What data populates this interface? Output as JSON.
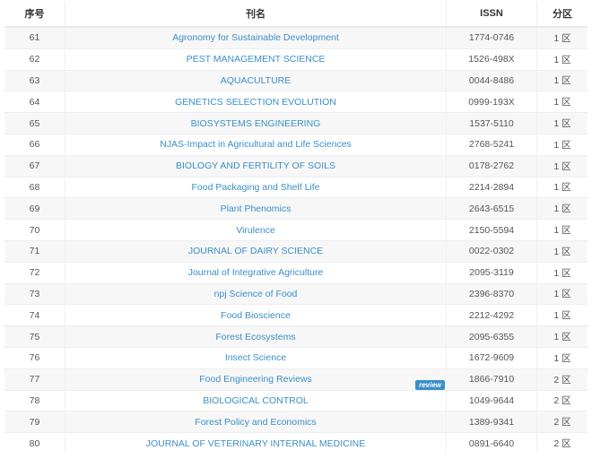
{
  "headers": {
    "index": "序号",
    "name": "刊名",
    "issn": "ISSN",
    "zone": "分区"
  },
  "link_color": "#3a8fc8",
  "rows": [
    {
      "index": "61",
      "name": "Agronomy for Sustainable Development",
      "issn": "1774-0746",
      "zone": "1 区"
    },
    {
      "index": "62",
      "name": "PEST MANAGEMENT SCIENCE",
      "issn": "1526-498X",
      "zone": "1 区"
    },
    {
      "index": "63",
      "name": "AQUACULTURE",
      "issn": "0044-8486",
      "zone": "1 区"
    },
    {
      "index": "64",
      "name": "GENETICS SELECTION EVOLUTION",
      "issn": "0999-193X",
      "zone": "1 区"
    },
    {
      "index": "65",
      "name": "BIOSYSTEMS ENGINEERING",
      "issn": "1537-5110",
      "zone": "1 区"
    },
    {
      "index": "66",
      "name": "NJAS-Impact in Agricultural and Life Sciences",
      "issn": "2768-5241",
      "zone": "1 区"
    },
    {
      "index": "67",
      "name": "BIOLOGY AND FERTILITY OF SOILS",
      "issn": "0178-2762",
      "zone": "1 区"
    },
    {
      "index": "68",
      "name": "Food Packaging and Shelf Life",
      "issn": "2214-2894",
      "zone": "1 区"
    },
    {
      "index": "69",
      "name": "Plant Phenomics",
      "issn": "2643-6515",
      "zone": "1 区"
    },
    {
      "index": "70",
      "name": "Virulence",
      "issn": "2150-5594",
      "zone": "1 区"
    },
    {
      "index": "71",
      "name": "JOURNAL OF DAIRY SCIENCE",
      "issn": "0022-0302",
      "zone": "1 区"
    },
    {
      "index": "72",
      "name": "Journal of Integrative Agriculture",
      "issn": "2095-3119",
      "zone": "1 区"
    },
    {
      "index": "73",
      "name": "npj Science of Food",
      "issn": "2396-8370",
      "zone": "1 区"
    },
    {
      "index": "74",
      "name": "Food Bioscience",
      "issn": "2212-4292",
      "zone": "1 区"
    },
    {
      "index": "75",
      "name": "Forest Ecosystems",
      "issn": "2095-6355",
      "zone": "1 区"
    },
    {
      "index": "76",
      "name": "Insect Science",
      "issn": "1672-9609",
      "zone": "1 区"
    },
    {
      "index": "77",
      "name": "Food Engineering Reviews",
      "issn": "1866-7910",
      "zone": "2 区",
      "badge": "review"
    },
    {
      "index": "78",
      "name": "BIOLOGICAL CONTROL",
      "issn": "1049-9644",
      "zone": "2 区"
    },
    {
      "index": "79",
      "name": "Forest Policy and Economics",
      "issn": "1389-9341",
      "zone": "2 区"
    },
    {
      "index": "80",
      "name": "JOURNAL OF VETERINARY INTERNAL MEDICINE",
      "issn": "0891-6640",
      "zone": "2 区"
    }
  ]
}
